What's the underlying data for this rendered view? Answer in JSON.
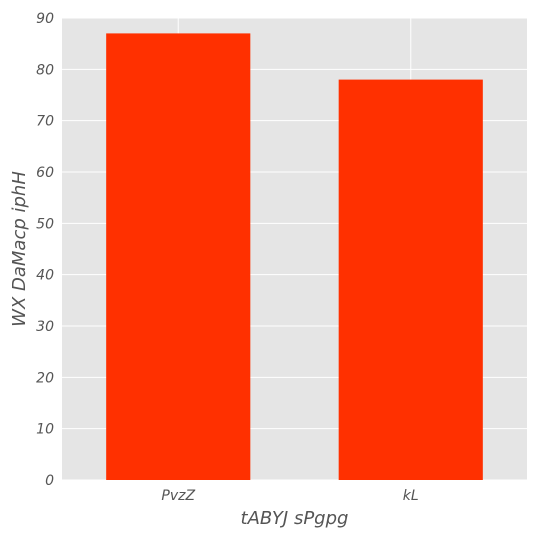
{
  "chart_data": {
    "type": "bar",
    "title": "",
    "xlabel": "tABYJ sPgpg",
    "ylabel": "WX DaMacp iphH",
    "categories": [
      "PvzZ",
      "kL"
    ],
    "values": [
      87,
      78
    ],
    "ylim": [
      0,
      90
    ],
    "yticks": [
      0,
      10,
      20,
      30,
      40,
      50,
      60,
      70,
      80,
      90
    ],
    "grid": true,
    "legend": "none",
    "colors": {
      "bar": "#ff3000",
      "plot_background": "#e5e5e5",
      "grid": "#ffffff",
      "text": "#555555"
    }
  }
}
